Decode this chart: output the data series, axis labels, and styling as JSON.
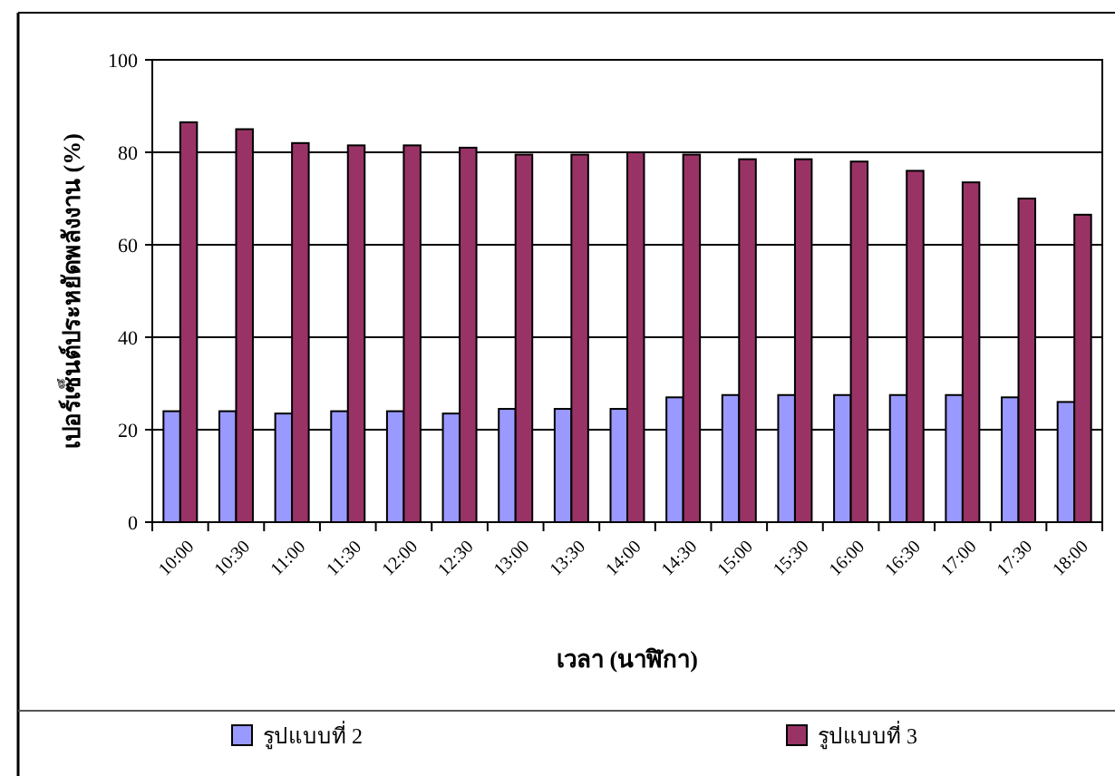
{
  "chart_data": {
    "type": "bar",
    "xlabel": "เวลา (นาฬิกา)",
    "ylabel": "เปอร์เซ็นต์ประหยัดพลังงาน (%)",
    "categories": [
      "10:00",
      "10:30",
      "11:00",
      "11:30",
      "12:00",
      "12:30",
      "13:00",
      "13:30",
      "14:00",
      "14:30",
      "15:00",
      "15:30",
      "16:00",
      "16:30",
      "17:00",
      "17:30",
      "18:00"
    ],
    "series": [
      {
        "name": "รูปแบบที่ 2",
        "color": "#9999ff",
        "values": [
          24,
          24,
          23.5,
          24,
          24,
          23.5,
          24.5,
          24.5,
          24.5,
          27,
          27.5,
          27.5,
          27.5,
          27.5,
          27.5,
          27,
          26
        ]
      },
      {
        "name": "รูปแบบที่ 3",
        "color": "#993366",
        "values": [
          86.5,
          85,
          82,
          81.5,
          81.5,
          81,
          79.5,
          79.5,
          80,
          79.5,
          78.5,
          78.5,
          78,
          76,
          73.5,
          70,
          66.5
        ]
      }
    ],
    "ylim": [
      0,
      100
    ],
    "yticks": [
      0,
      20,
      40,
      60,
      80,
      100
    ],
    "grid": "y",
    "legend": "bottom"
  }
}
